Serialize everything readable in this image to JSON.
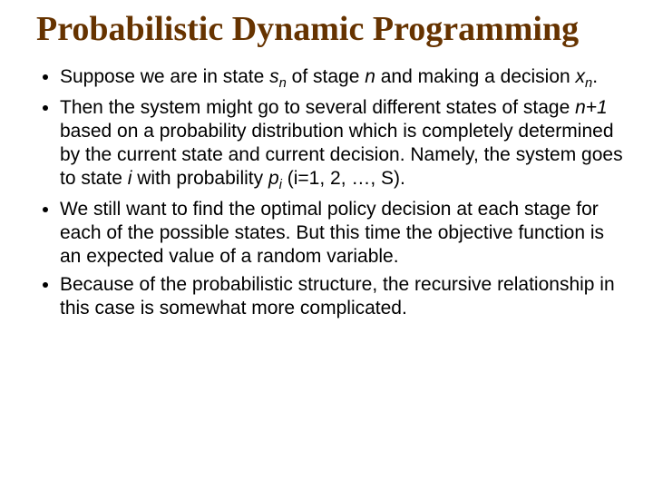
{
  "title": "Probabilistic Dynamic Programming",
  "title_color": "#663300",
  "title_font": "Comic Sans MS",
  "title_fontsize": 38,
  "body_fontsize": 21,
  "text_color": "#000000",
  "background_color": "#ffffff",
  "bullets": {
    "b1_a": "Suppose we are in state ",
    "b1_sn_s": "s",
    "b1_sn_n": "n",
    "b1_b": " of stage ",
    "b1_n": "n",
    "b1_c": " and making a decision ",
    "b1_xn_x": "x",
    "b1_xn_n": "n",
    "b1_d": ".",
    "b2_a": "Then the system might go to several different states of stage ",
    "b2_np1": "n+1",
    "b2_b": " based on a probability distribution which is completely determined by the current state and current decision. Namely, the system goes to state ",
    "b2_i": "i",
    "b2_c": " with probability ",
    "b2_pi_p": "p",
    "b2_pi_i": "i",
    "b2_d": " (i=1, 2, …, S).",
    "b3": "We still want to find the optimal policy decision at each stage for each of the possible states. But this time the objective function is an expected value of a random variable.",
    "b4": "Because of the probabilistic structure, the recursive relationship in this case is somewhat more complicated."
  }
}
